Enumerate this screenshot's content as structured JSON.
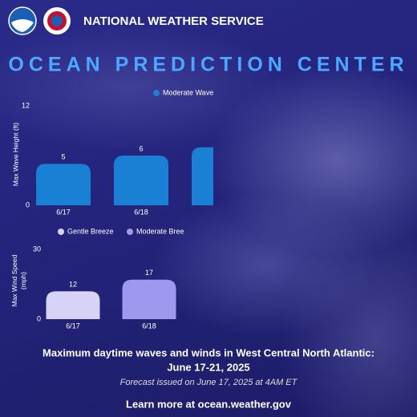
{
  "header": {
    "org": "NATIONAL WEATHER SERVICE",
    "center": "OCEAN PREDICTION CENTER"
  },
  "chart_data": [
    {
      "type": "bar",
      "ylabel": "Max Wave Height (ft)",
      "categories": [
        "6/17",
        "6/18",
        null
      ],
      "series": [
        {
          "name": "Moderate Wave",
          "color": "#1a80d4",
          "values": [
            5,
            6,
            7
          ]
        }
      ],
      "ylim": [
        0,
        12
      ],
      "yticks": [
        0,
        12
      ]
    },
    {
      "type": "bar",
      "ylabel": "Max Wind Speed (mph)",
      "categories": [
        "6/17",
        "6/18"
      ],
      "series": [
        {
          "name": "Gentle Breeze",
          "color": "#d6d3f7",
          "values": [
            12,
            null
          ]
        },
        {
          "name": "Moderate Bree",
          "color": "#9e98ee",
          "values": [
            null,
            17
          ]
        }
      ],
      "ylim": [
        0,
        30
      ],
      "yticks": [
        0,
        30
      ]
    }
  ],
  "footer": {
    "caption": "Maximum daytime waves and winds in West Central North Atlantic:",
    "dates": "June 17-21, 2025",
    "issued": "Forecast issued on June 17, 2025 at 4AM ET",
    "link": "Learn more at ocean.weather.gov"
  }
}
